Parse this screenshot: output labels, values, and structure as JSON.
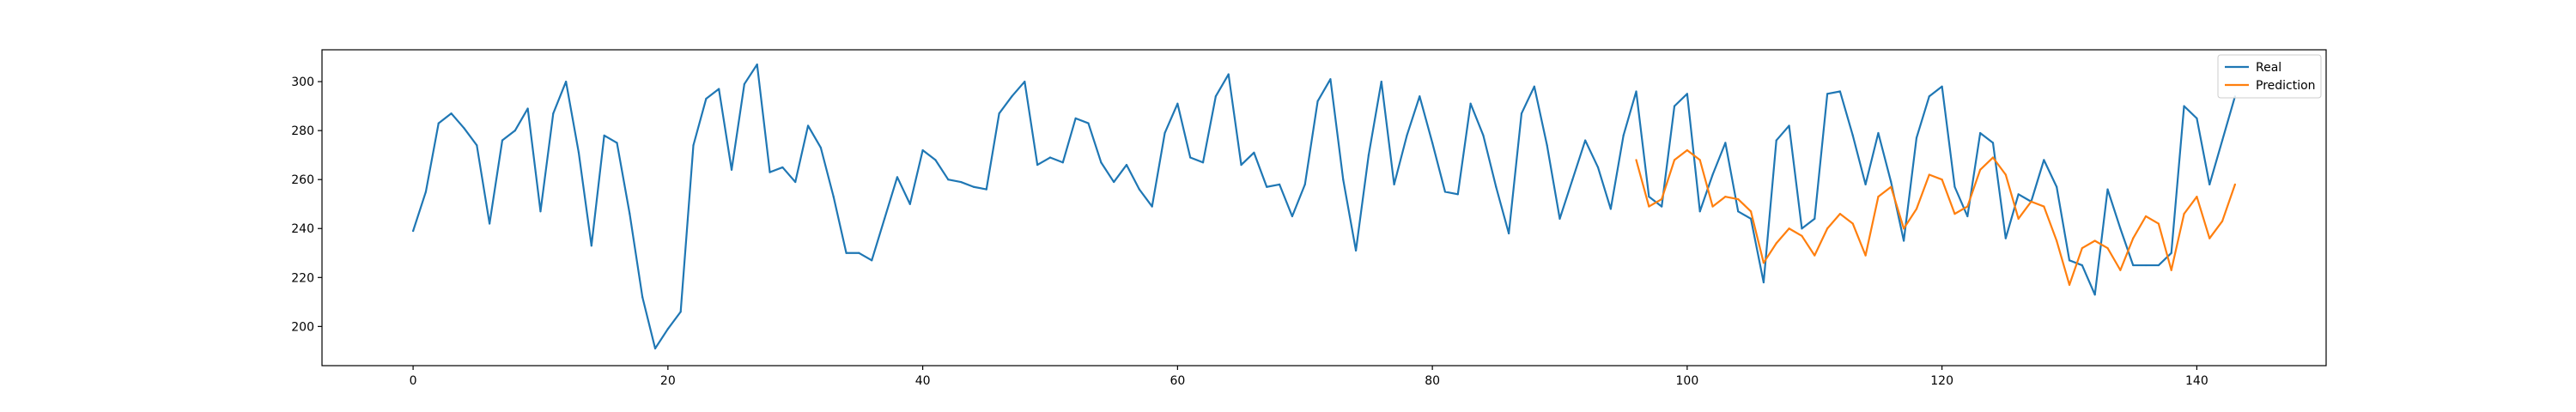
{
  "chart_data": {
    "type": "line",
    "title": "",
    "xlabel": "",
    "ylabel": "",
    "xlim": [
      -7.15,
      150.15
    ],
    "ylim": [
      184,
      313
    ],
    "xticks": [
      0,
      20,
      40,
      60,
      80,
      100,
      120,
      140
    ],
    "yticks": [
      200,
      220,
      240,
      260,
      280,
      300
    ],
    "grid": false,
    "legend": {
      "position": "top-right",
      "entries": [
        "Real",
        "Prediction"
      ]
    },
    "series": [
      {
        "name": "Real",
        "color": "#1f77b4",
        "x_start": 0,
        "values": [
          239,
          255,
          283,
          287,
          281,
          274,
          242,
          276,
          280,
          289,
          247,
          287,
          300,
          271,
          233,
          278,
          275,
          246,
          212,
          191,
          199,
          206,
          274,
          293,
          297,
          264,
          299,
          307,
          263,
          265,
          259,
          282,
          273,
          253,
          230,
          230,
          227,
          244,
          261,
          250,
          272,
          268,
          260,
          259,
          257,
          256,
          287,
          294,
          300,
          266,
          269,
          267,
          285,
          283,
          267,
          259,
          266,
          256,
          249,
          279,
          291,
          269,
          267,
          294,
          303,
          266,
          271,
          257,
          258,
          245,
          258,
          292,
          301,
          260,
          231,
          270,
          300,
          258,
          278,
          294,
          275,
          255,
          254,
          291,
          278,
          257,
          238,
          287,
          298,
          274,
          244,
          260,
          276,
          265,
          248,
          278,
          296,
          253,
          249,
          290,
          295,
          247,
          262,
          275,
          247,
          244,
          218,
          276,
          282,
          240,
          244,
          295,
          296,
          278,
          258,
          279,
          259,
          235,
          277,
          294,
          298,
          257,
          245,
          279,
          275,
          236,
          254,
          251,
          268,
          257,
          227,
          225,
          213,
          256,
          240,
          225,
          225,
          225,
          230,
          290,
          285,
          258,
          276,
          294
        ]
      },
      {
        "name": "Prediction",
        "color": "#ff7f0e",
        "x_start": 96,
        "values": [
          268,
          249,
          252,
          268,
          272,
          268,
          249,
          253,
          252,
          247,
          226,
          234,
          240,
          237,
          229,
          240,
          246,
          242,
          229,
          253,
          257,
          240,
          248,
          262,
          260,
          246,
          249,
          264,
          269,
          262,
          244,
          251,
          249,
          235,
          217,
          232,
          235,
          232,
          223,
          236,
          245,
          242,
          223,
          246,
          253,
          236,
          243,
          258
        ]
      }
    ]
  }
}
